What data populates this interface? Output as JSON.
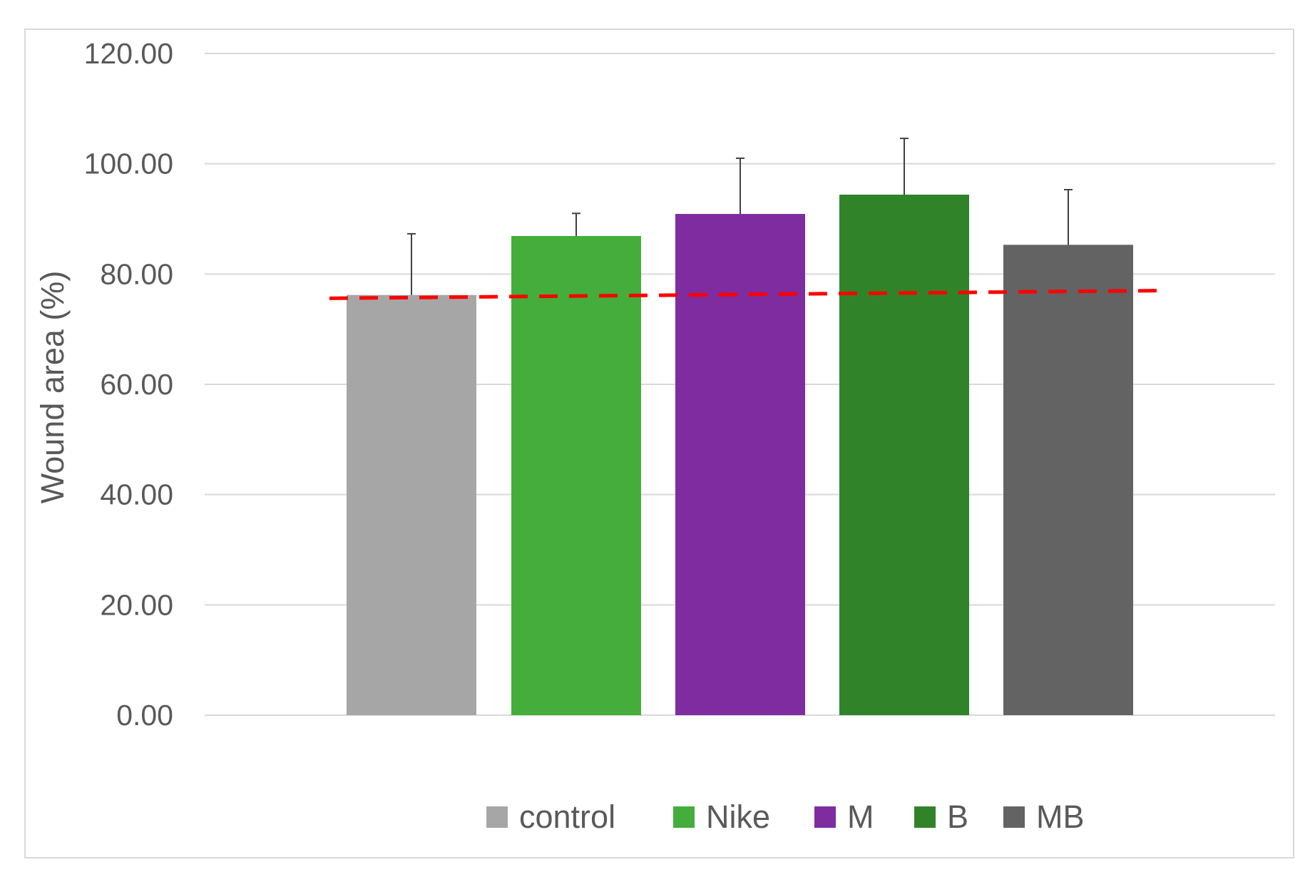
{
  "chart_data": {
    "type": "bar",
    "title": "",
    "xlabel": "",
    "ylabel": "Wound area (%)",
    "ylim": [
      0,
      120
    ],
    "yticks": [
      "0.00",
      "20.00",
      "40.00",
      "60.00",
      "80.00",
      "100.00",
      "120.00"
    ],
    "grid": true,
    "legend_position": "bottom",
    "categories": [
      "control",
      "Nike",
      "M",
      "B",
      "MB"
    ],
    "values": [
      76.2,
      86.9,
      90.9,
      94.4,
      85.3
    ],
    "error_plus": [
      11.1,
      4.1,
      10.1,
      10.2,
      10.0
    ],
    "colors": [
      "#a6a6a6",
      "#44ad3b",
      "#7e2ca0",
      "#318329",
      "#636363"
    ],
    "reference_line": {
      "style": "dashed",
      "color": "#ff0000",
      "y_start": 75.6,
      "y_end": 77.0
    }
  }
}
